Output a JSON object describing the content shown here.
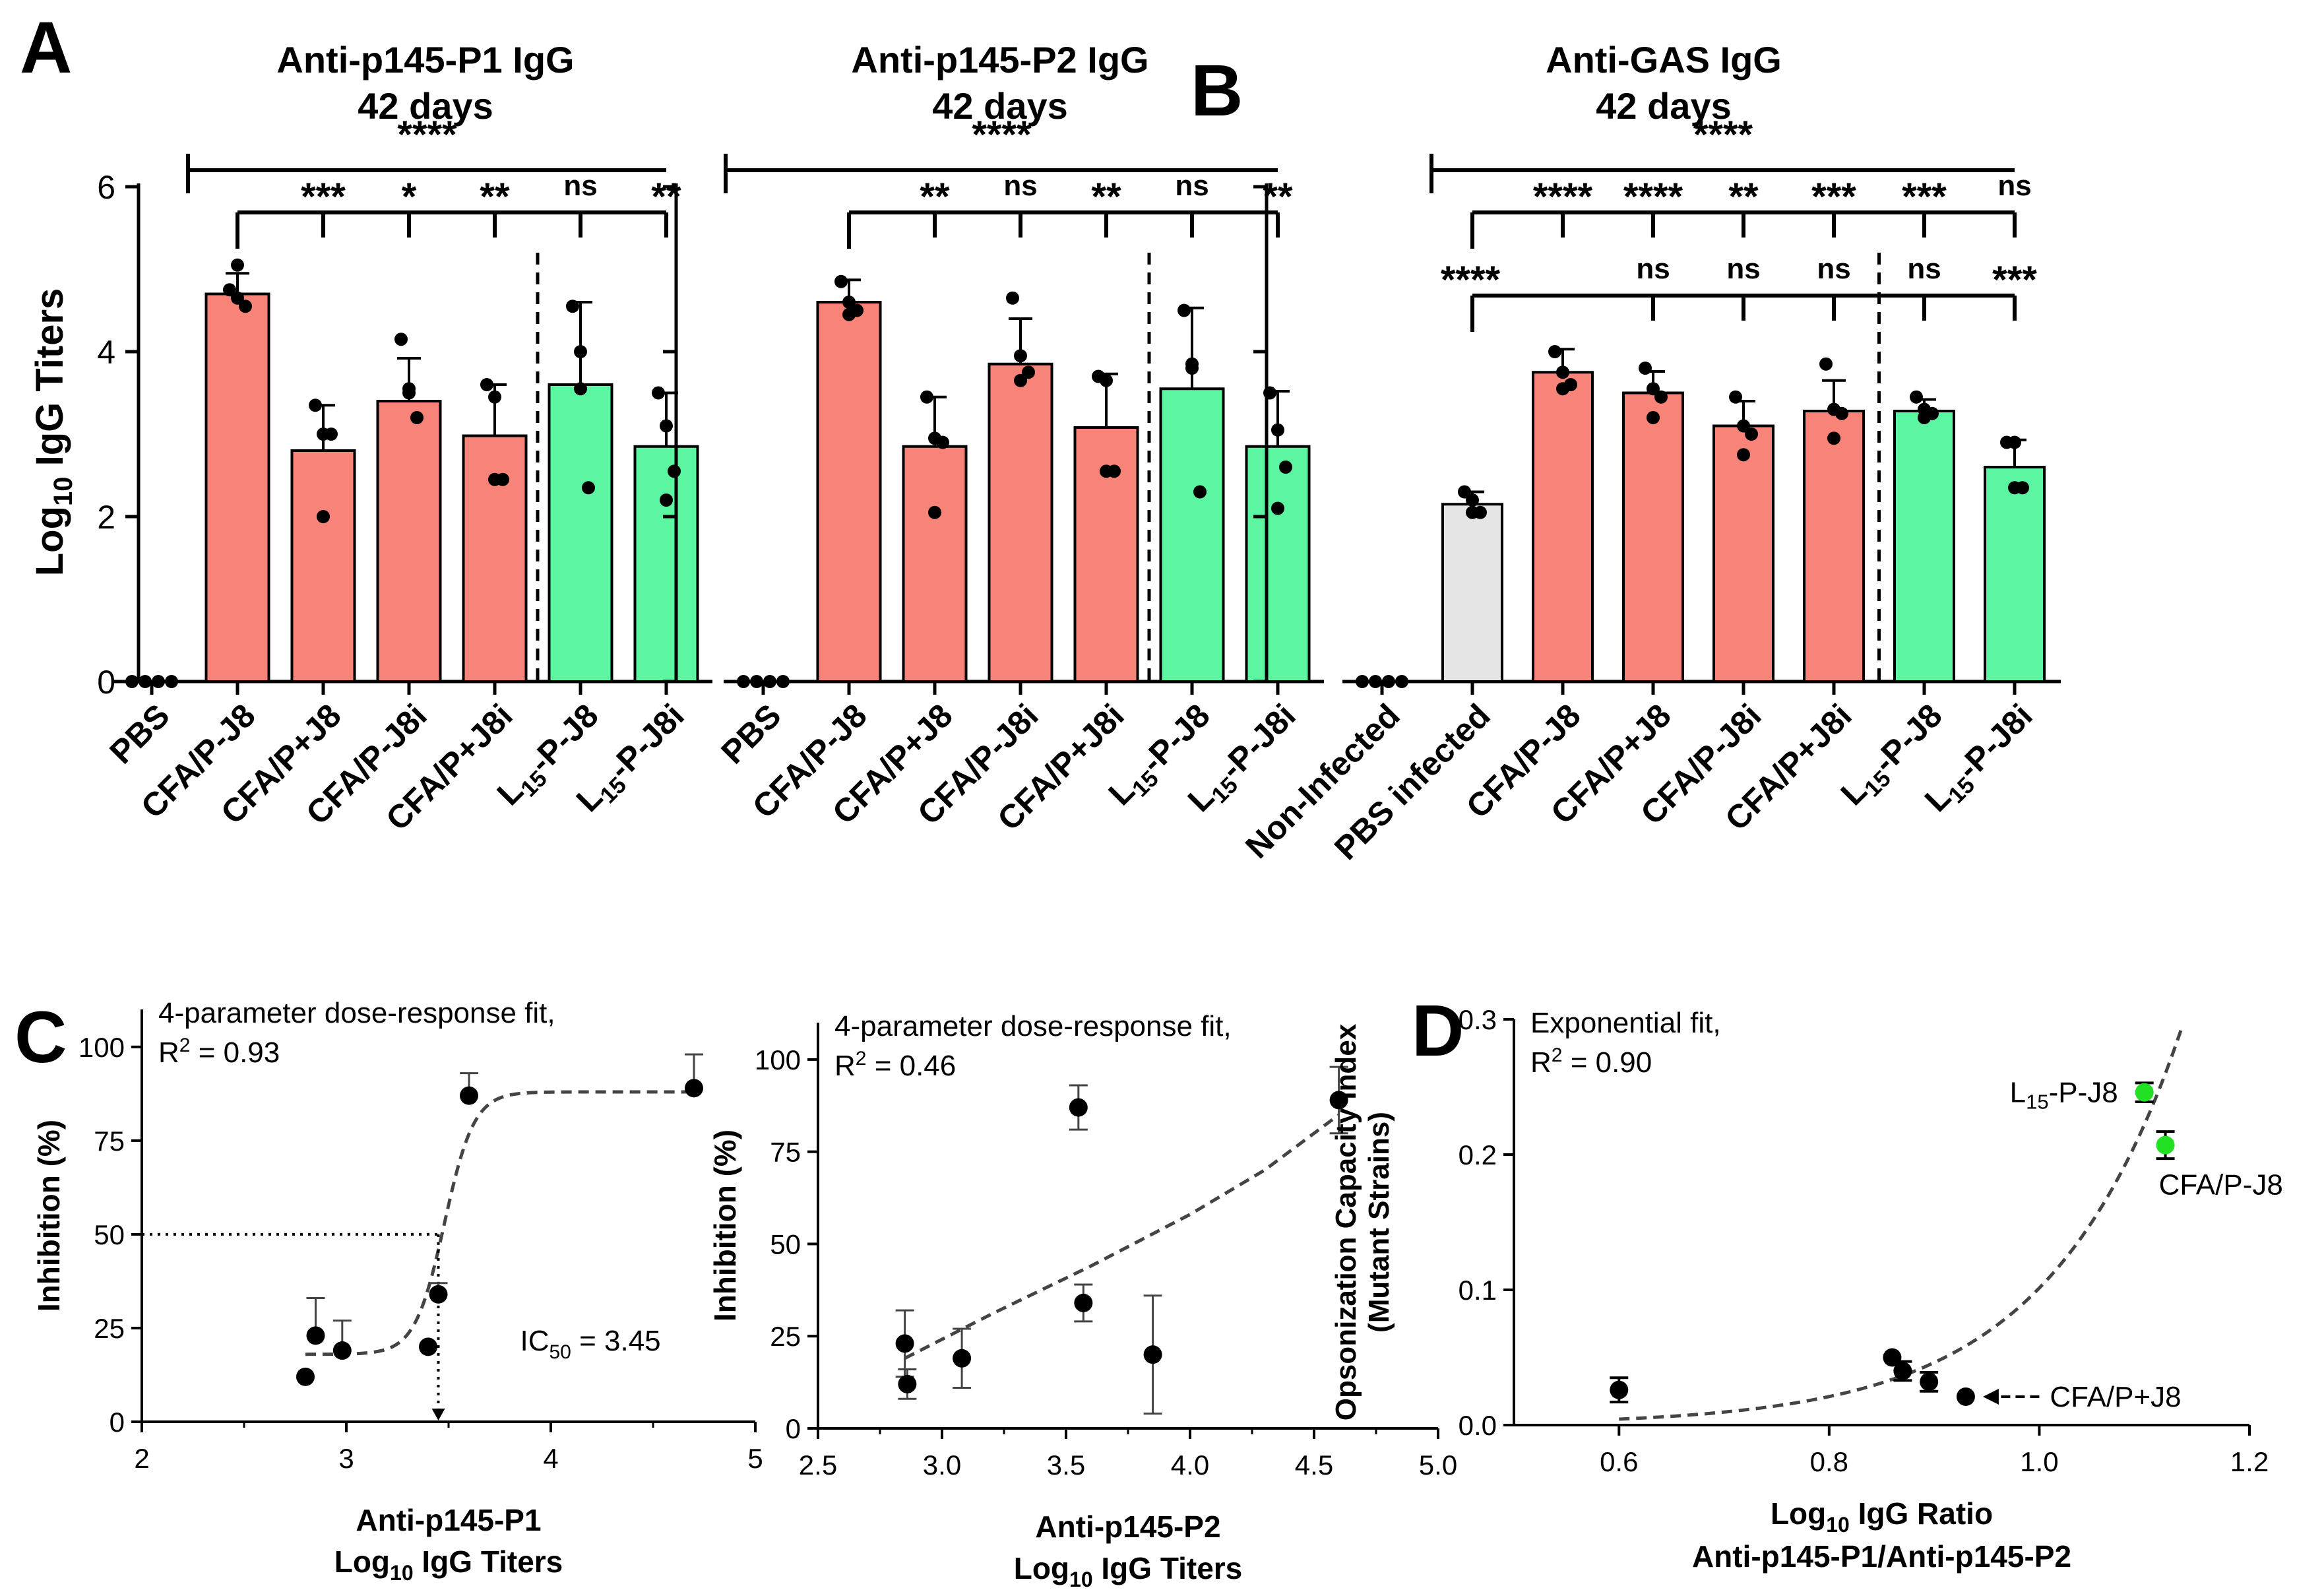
{
  "panel_labels": {
    "A": "A",
    "B": "B",
    "C": "C",
    "D": "D"
  },
  "colors": {
    "red": "#f88379",
    "green": "#5cf5a2",
    "grey": "#e5e5e5",
    "lime": "#22e022",
    "ink": "#000000"
  },
  "shared_ylabel": {
    "pre": "Log",
    "sub": "10",
    "post": " IgG Titers"
  },
  "chart_data": [
    {
      "id": "p1",
      "type": "bar",
      "title": [
        "Anti-p145-P1 IgG",
        "42 days"
      ],
      "categories": [
        {
          "pre": "PBS",
          "sub": "",
          "post": ""
        },
        {
          "pre": "CFA/P-J8",
          "sub": "",
          "post": ""
        },
        {
          "pre": "CFA/P+J8",
          "sub": "",
          "post": ""
        },
        {
          "pre": "CFA/P-J8i",
          "sub": "",
          "post": ""
        },
        {
          "pre": "CFA/P+J8i",
          "sub": "",
          "post": ""
        },
        {
          "pre": "L",
          "sub": "15",
          "post": "-P-J8"
        },
        {
          "pre": "L",
          "sub": "15",
          "post": "-P-J8i"
        }
      ],
      "values": [
        0,
        4.7,
        2.8,
        3.4,
        2.98,
        3.6,
        2.85
      ],
      "errors": [
        0,
        0.25,
        0.55,
        0.52,
        0.62,
        1.0,
        0.65
      ],
      "colors": [
        "none",
        "red",
        "red",
        "red",
        "red",
        "green",
        "green"
      ],
      "points": [
        [
          0,
          0,
          0,
          0
        ],
        [
          4.75,
          4.65,
          4.55,
          5.05
        ],
        [
          3.35,
          3.0,
          3.0,
          2.0
        ],
        [
          4.15,
          3.55,
          3.2,
          3.5
        ],
        [
          3.6,
          3.45,
          2.45,
          2.45
        ],
        [
          4.55,
          4.0,
          2.35,
          3.55
        ],
        [
          3.5,
          3.1,
          2.55,
          2.2
        ]
      ],
      "yticks": [
        0,
        2,
        4,
        6
      ],
      "ylim": [
        0,
        6
      ],
      "overall": {
        "label": "****",
        "from": 0,
        "to": 6
      },
      "comparisons": {
        "from": 1,
        "targets": [
          2,
          3,
          4,
          5,
          6
        ],
        "labels": [
          "***",
          "*",
          "**",
          "ns",
          "**"
        ]
      },
      "divider_after": 4
    },
    {
      "id": "p2",
      "type": "bar",
      "title": [
        "Anti-p145-P2 IgG",
        "42 days"
      ],
      "categories": [
        {
          "pre": "PBS",
          "sub": "",
          "post": ""
        },
        {
          "pre": "CFA/P-J8",
          "sub": "",
          "post": ""
        },
        {
          "pre": "CFA/P+J8",
          "sub": "",
          "post": ""
        },
        {
          "pre": "CFA/P-J8i",
          "sub": "",
          "post": ""
        },
        {
          "pre": "CFA/P+J8i",
          "sub": "",
          "post": ""
        },
        {
          "pre": "L",
          "sub": "15",
          "post": "-P-J8"
        },
        {
          "pre": "L",
          "sub": "15",
          "post": "-P-J8i"
        }
      ],
      "values": [
        0,
        4.6,
        2.85,
        3.85,
        3.08,
        3.55,
        2.85
      ],
      "errors": [
        0,
        0.27,
        0.6,
        0.55,
        0.65,
        0.98,
        0.67
      ],
      "colors": [
        "none",
        "red",
        "red",
        "red",
        "red",
        "green",
        "green"
      ],
      "points": [
        [
          0,
          0,
          0,
          0
        ],
        [
          4.85,
          4.6,
          4.5,
          4.45
        ],
        [
          3.45,
          2.95,
          2.9,
          2.05
        ],
        [
          4.65,
          3.95,
          3.75,
          3.65
        ],
        [
          3.7,
          3.65,
          2.55,
          2.55
        ],
        [
          4.5,
          3.85,
          2.3,
          3.8
        ],
        [
          3.5,
          3.05,
          2.6,
          2.1
        ]
      ],
      "yticks": [
        0,
        2,
        4,
        6
      ],
      "ylim": [
        0,
        6
      ],
      "overall": {
        "label": "****",
        "from": 0,
        "to": 6
      },
      "comparisons": {
        "from": 1,
        "targets": [
          2,
          3,
          4,
          5,
          6
        ],
        "labels": [
          "**",
          "ns",
          "**",
          "ns",
          "**"
        ]
      },
      "divider_after": 4
    },
    {
      "id": "gas",
      "type": "bar",
      "title": [
        "Anti-GAS IgG",
        "42 days"
      ],
      "categories": [
        {
          "pre": "Non-Infected",
          "sub": "",
          "post": ""
        },
        {
          "pre": "PBS infected",
          "sub": "",
          "post": ""
        },
        {
          "pre": "CFA/P-J8",
          "sub": "",
          "post": ""
        },
        {
          "pre": "CFA/P+J8",
          "sub": "",
          "post": ""
        },
        {
          "pre": "CFA/P-J8i",
          "sub": "",
          "post": ""
        },
        {
          "pre": "CFA/P+J8i",
          "sub": "",
          "post": ""
        },
        {
          "pre": "L",
          "sub": "15",
          "post": "-P-J8"
        },
        {
          "pre": "L",
          "sub": "15",
          "post": "-P-J8i"
        }
      ],
      "values": [
        0,
        2.15,
        3.75,
        3.5,
        3.1,
        3.28,
        3.28,
        2.6
      ],
      "errors": [
        0,
        0.15,
        0.28,
        0.26,
        0.3,
        0.37,
        0.14,
        0.33
      ],
      "colors": [
        "none",
        "grey",
        "red",
        "red",
        "red",
        "red",
        "green",
        "green"
      ],
      "points": [
        [
          0,
          0,
          0,
          0
        ],
        [
          2.3,
          2.2,
          2.05,
          2.05
        ],
        [
          4.0,
          3.75,
          3.6,
          3.55
        ],
        [
          3.8,
          3.55,
          3.45,
          3.2
        ],
        [
          3.45,
          3.1,
          3.0,
          2.75
        ],
        [
          3.85,
          3.3,
          3.25,
          2.95
        ],
        [
          3.45,
          3.3,
          3.25,
          3.2
        ],
        [
          2.9,
          2.9,
          2.35,
          2.35
        ]
      ],
      "yticks": [
        0,
        2,
        4,
        6
      ],
      "ylim": [
        0,
        6
      ],
      "overall": {
        "label": "****",
        "from": 0,
        "to": 7
      },
      "comparisons": {
        "from": 1,
        "targets": [
          2,
          3,
          4,
          5,
          6,
          7
        ],
        "labels": [
          "****",
          "****",
          "**",
          "***",
          "***",
          "ns"
        ]
      },
      "comparisons2": {
        "from": 1,
        "lead_label": "****",
        "targets": [
          3,
          4,
          5,
          6,
          7
        ],
        "labels": [
          "ns",
          "ns",
          "ns",
          "ns",
          "***"
        ]
      },
      "divider_after": 5
    },
    {
      "id": "c1",
      "type": "scatter",
      "annotation": [
        "4-parameter dose-response fit,",
        "R",
        "2",
        " = 0.93"
      ],
      "ic50": {
        "pre": "IC",
        "sub": "50",
        "post": " = 3.45",
        "value": 3.45
      },
      "xlabel": [
        "Anti-p145-P1",
        "Log",
        "10",
        " IgG Titers"
      ],
      "ylabel": "Inhibition (%)",
      "xlim": [
        2,
        5
      ],
      "ylim": [
        0,
        110
      ],
      "xticks": [
        2,
        3,
        4,
        5
      ],
      "xticklabels": [
        "2",
        "3",
        "4",
        "5"
      ],
      "yticks": [
        0,
        25,
        50,
        75,
        100
      ],
      "yticklabels": [
        "0",
        "25",
        "50",
        "75",
        "100"
      ],
      "x": [
        2.8,
        2.85,
        2.98,
        3.4,
        3.45,
        3.6,
        4.7
      ],
      "y": [
        12,
        23,
        19,
        20,
        34,
        87,
        89
      ],
      "err_hi": [
        0,
        10,
        8,
        0,
        3,
        6,
        9
      ],
      "err_lo": [
        0,
        0,
        0,
        0,
        0,
        0,
        0
      ],
      "fit": {
        "bottom": 18,
        "top": 88,
        "ec50": 3.48,
        "hill": 60,
        "from": 2.8,
        "to": 4.7
      }
    },
    {
      "id": "c2",
      "type": "scatter",
      "annotation": [
        "4-parameter dose-response fit,",
        "R",
        "2",
        " = 0.46"
      ],
      "xlabel": [
        "Anti-p145-P2",
        "Log",
        "10",
        " IgG Titers"
      ],
      "ylabel": "Inhibition (%)",
      "xlim": [
        2.5,
        5.0
      ],
      "ylim": [
        0,
        110
      ],
      "xticks": [
        2.5,
        3.0,
        3.5,
        4.0,
        4.5,
        5.0
      ],
      "xticklabels": [
        "2.5",
        "3.0",
        "3.5",
        "4.0",
        "4.5",
        "5.0"
      ],
      "yticks": [
        0,
        25,
        50,
        75,
        100
      ],
      "yticklabels": [
        "0",
        "25",
        "50",
        "75",
        "100"
      ],
      "x": [
        2.85,
        2.86,
        3.08,
        3.55,
        3.57,
        3.85,
        4.6
      ],
      "y": [
        23,
        12,
        19,
        87,
        34,
        20,
        89
      ],
      "err_hi": [
        9,
        4,
        8,
        6,
        5,
        16,
        9
      ],
      "err_lo": [
        9,
        4,
        8,
        6,
        5,
        16,
        9
      ],
      "fit": {
        "curve": [
          [
            2.85,
            19
          ],
          [
            3.2,
            31
          ],
          [
            3.6,
            44
          ],
          [
            4.0,
            58
          ],
          [
            4.3,
            70
          ],
          [
            4.6,
            85
          ]
        ]
      }
    },
    {
      "id": "d",
      "type": "scatter",
      "annotation": [
        "Exponential fit,",
        "R",
        "2",
        " = 0.90"
      ],
      "xlabel": [
        "Log",
        "10",
        " IgG Ratio",
        "Anti-p145-P1/Anti-p145-P2"
      ],
      "ylabel": [
        "Opsonization Capacity Index",
        "(Mutant Strains)"
      ],
      "xlim": [
        0.5,
        1.2
      ],
      "ylim": [
        0,
        0.3
      ],
      "xticks": [
        0.6,
        0.8,
        1.0,
        1.2
      ],
      "xticklabels": [
        "0.6",
        "0.8",
        "1.0",
        "1.2"
      ],
      "yticks": [
        0,
        0.1,
        0.2,
        0.3
      ],
      "yticklabels": [
        "0.0",
        "0.1",
        "0.2",
        "0.3"
      ],
      "x": [
        0.6,
        0.86,
        0.87,
        0.895,
        0.93,
        1.1,
        1.12
      ],
      "y": [
        0.026,
        0.05,
        0.04,
        0.032,
        0.021,
        0.246,
        0.207
      ],
      "err": [
        0.009,
        0,
        0.007,
        0.007,
        0,
        0.007,
        0.01
      ],
      "point_colors": [
        "ink",
        "ink",
        "ink",
        "ink",
        "ink",
        "lime",
        "lime"
      ],
      "fit": {
        "a": 3.95e-05,
        "b": 7.85,
        "from": 0.6,
        "to": 1.135
      },
      "labels": [
        {
          "pre": "L",
          "sub": "15",
          "post": "-P-J8"
        },
        {
          "pre": "CFA/P-J8",
          "sub": "",
          "post": ""
        },
        {
          "pre": "CFA/P+J8",
          "sub": "",
          "post": ""
        }
      ]
    }
  ]
}
